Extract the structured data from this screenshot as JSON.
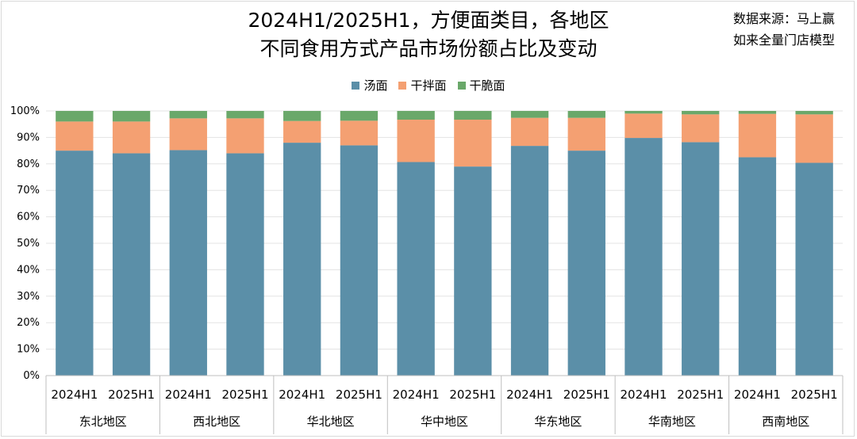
{
  "title_line1": "2024H1/2025H1，方便面类目，各地区",
  "title_line2": "不同食用方式产品市场份额占比及变动",
  "source_line1": "数据来源：马上赢",
  "source_line2": "如来全量门店模型",
  "chart_data": {
    "type": "bar",
    "stacked": true,
    "title": "2024H1/2025H1，方便面类目，各地区不同食用方式产品市场份额占比及变动",
    "ylim": [
      0,
      100
    ],
    "yticks": [
      "0%",
      "10%",
      "20%",
      "30%",
      "40%",
      "50%",
      "60%",
      "70%",
      "80%",
      "90%",
      "100%"
    ],
    "grid": true,
    "legend_position": "top",
    "groups": [
      "东北地区",
      "西北地区",
      "华北地区",
      "华中地区",
      "华东地区",
      "华南地区",
      "西南地区"
    ],
    "categories": [
      "2024H1",
      "2025H1",
      "2024H1",
      "2025H1",
      "2024H1",
      "2025H1",
      "2024H1",
      "2025H1",
      "2024H1",
      "2025H1",
      "2024H1",
      "2025H1",
      "2024H1",
      "2025H1"
    ],
    "series": [
      {
        "name": "汤面",
        "color": "#5b8fa8",
        "values": [
          85,
          84,
          85.2,
          84,
          88,
          87,
          80.7,
          79,
          86.8,
          85,
          89.8,
          88.2,
          82.5,
          80.4
        ]
      },
      {
        "name": "干拌面",
        "color": "#f4a072",
        "values": [
          11,
          12,
          12,
          13.2,
          8.2,
          9.3,
          16,
          17.7,
          10.6,
          12.4,
          9.2,
          10.5,
          16.4,
          18.3
        ]
      },
      {
        "name": "干脆面",
        "color": "#6aa86a",
        "values": [
          4,
          4,
          2.8,
          2.8,
          3.8,
          3.7,
          3.3,
          3.3,
          2.6,
          2.6,
          1,
          1.3,
          1.1,
          1.3
        ]
      }
    ]
  }
}
